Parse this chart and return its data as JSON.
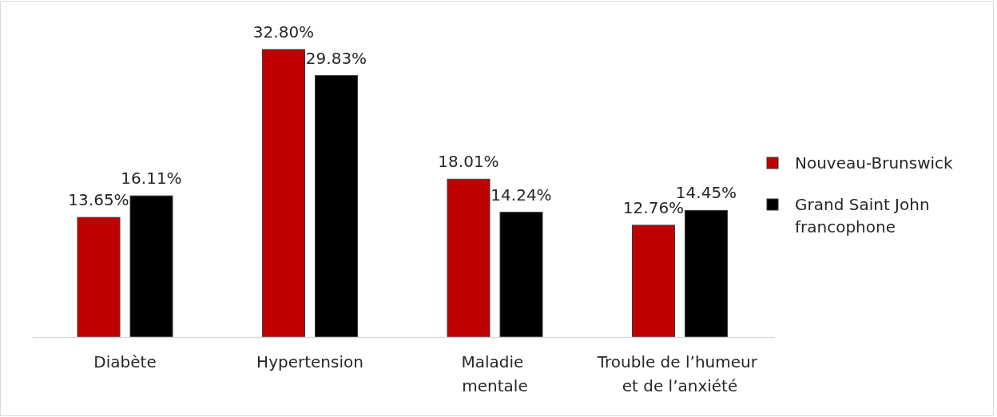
{
  "chart_data": {
    "type": "bar",
    "categories": [
      "Diabète",
      "Hypertension",
      "Maladie mentale",
      "Trouble de l’humeur et de l’anxiété"
    ],
    "series": [
      {
        "name": "Nouveau-Brunswick",
        "color": "#c00000",
        "values": [
          13.65,
          32.8,
          18.01,
          12.76
        ],
        "value_labels": [
          "13.65%",
          "32.80%",
          "18.01%",
          "12.76%"
        ]
      },
      {
        "name": "Grand Saint John francophone",
        "color": "#000000",
        "values": [
          16.11,
          29.83,
          14.24,
          14.45
        ],
        "value_labels": [
          "16.11%",
          "29.83%",
          "14.24%",
          "14.45%"
        ]
      }
    ],
    "legend": "right"
  }
}
